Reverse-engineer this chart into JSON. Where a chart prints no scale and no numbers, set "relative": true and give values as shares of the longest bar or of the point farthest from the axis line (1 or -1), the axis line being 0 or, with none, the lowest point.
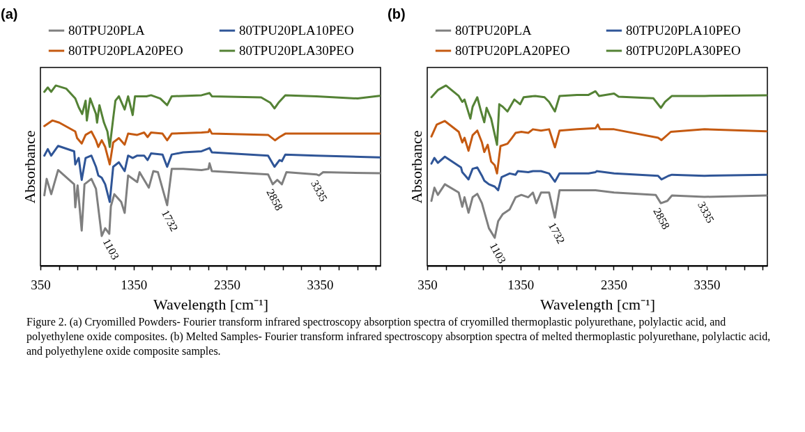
{
  "chart_data": [
    {
      "type": "line",
      "title": "(a)",
      "xlabel": "Wavelength [cm⁻¹]",
      "ylabel": "Absorbance",
      "relative": true,
      "legend": "top",
      "tick_labels": "x",
      "xlim": [
        350,
        4000
      ],
      "xticks": [
        350,
        {
          "value": 550,
          "label": null
        },
        {
          "value": 750,
          "label": null
        },
        {
          "value": 950,
          "label": null
        },
        {
          "value": 1150,
          "label": null
        },
        1350,
        {
          "value": 1550,
          "label": null
        },
        {
          "value": 1750,
          "label": null
        },
        {
          "value": 1950,
          "label": null
        },
        {
          "value": 2150,
          "label": null
        },
        2350,
        {
          "value": 2550,
          "label": null
        },
        {
          "value": 2750,
          "label": null
        },
        {
          "value": 2950,
          "label": null
        },
        {
          "value": 3150,
          "label": null
        },
        3350,
        {
          "value": 3550,
          "label": null
        },
        {
          "value": 3750,
          "label": null
        },
        {
          "value": 3950,
          "label": null
        }
      ],
      "annotations": [
        {
          "text": "1103",
          "x": 1103,
          "y": 0.177
        },
        {
          "text": "1732",
          "x": 1732,
          "y": 0.336
        },
        {
          "text": "2858",
          "x": 2858,
          "y": 0.452
        },
        {
          "text": "3335",
          "x": 3335,
          "y": 0.501
        },
        "Figure 2. (a) Cryomilled Powders- Fourier transform infrared spectroscopy absorption spectra of cryomilled thermoplastic polyurethane, polylactic acid, and polyethylene oxide composites. (b) Melted Samples- Fourier transform infrared spectroscopy absorption spectra of melted thermoplastic polyurethane, polylactic acid, and polyethylene oxide composite samples."
      ],
      "series": [
        {
          "name": "80TPU20PLA",
          "color": "#7f7f7f",
          "x": [
            392,
            417,
            466,
            540,
            712,
            724,
            749,
            793,
            823,
            897,
            946,
            1008,
            1045,
            1089,
            1106,
            1143,
            1217,
            1254,
            1291,
            1389,
            1414,
            1513,
            1562,
            1611,
            1710,
            1759,
            1882,
            2079,
            2153,
            2165,
            2190,
            2793,
            2843,
            2892,
            2941,
            2990,
            3311,
            3340,
            3384,
            3990
          ],
          "values": [
            0.391,
            0.482,
            0.397,
            0.531,
            0.452,
            0.324,
            0.446,
            0.195,
            0.452,
            0.482,
            0.427,
            0.165,
            0.208,
            0.177,
            0.33,
            0.397,
            0.354,
            0.293,
            0.501,
            0.464,
            0.519,
            0.433,
            0.525,
            0.519,
            0.336,
            0.537,
            0.537,
            0.531,
            0.537,
            0.568,
            0.525,
            0.507,
            0.452,
            0.476,
            0.452,
            0.519,
            0.507,
            0.501,
            0.519,
            0.513
          ]
        },
        {
          "name": "80TPU20PLA10PEO",
          "color": "#2f5597",
          "x": [
            392,
            429,
            466,
            540,
            712,
            724,
            761,
            793,
            835,
            897,
            946,
            971,
            1008,
            1045,
            1094,
            1131,
            1192,
            1254,
            1291,
            1340,
            1389,
            1463,
            1500,
            1537,
            1660,
            1710,
            1759,
            1882,
            2079,
            2165,
            2190,
            2793,
            2862,
            2916,
            2941,
            2978,
            3311,
            3990
          ],
          "values": [
            0.611,
            0.647,
            0.611,
            0.665,
            0.635,
            0.562,
            0.598,
            0.476,
            0.598,
            0.611,
            0.549,
            0.501,
            0.488,
            0.452,
            0.354,
            0.549,
            0.574,
            0.525,
            0.611,
            0.598,
            0.611,
            0.611,
            0.586,
            0.623,
            0.617,
            0.549,
            0.617,
            0.629,
            0.635,
            0.653,
            0.629,
            0.611,
            0.549,
            0.586,
            0.58,
            0.617,
            0.611,
            0.601
          ]
        },
        {
          "name": "80TPU20PLA20PEO",
          "color": "#c55a11",
          "x": [
            392,
            478,
            552,
            724,
            744,
            793,
            835,
            897,
            946,
            971,
            1008,
            1045,
            1094,
            1131,
            1192,
            1254,
            1291,
            1389,
            1463,
            1500,
            1537,
            1660,
            1710,
            1759,
            2079,
            2153,
            2165,
            2190,
            2793,
            2867,
            2916,
            2978,
            3990
          ],
          "values": [
            0.775,
            0.806,
            0.794,
            0.745,
            0.708,
            0.678,
            0.726,
            0.745,
            0.696,
            0.659,
            0.696,
            0.659,
            0.562,
            0.684,
            0.708,
            0.672,
            0.733,
            0.726,
            0.739,
            0.714,
            0.739,
            0.733,
            0.696,
            0.733,
            0.739,
            0.742,
            0.757,
            0.733,
            0.726,
            0.696,
            0.714,
            0.733,
            0.733
          ]
        },
        {
          "name": "80TPU20PLA30PEO",
          "color": "#548235",
          "x": [
            392,
            429,
            466,
            515,
            626,
            724,
            761,
            798,
            835,
            848,
            884,
            946,
            958,
            983,
            1032,
            1069,
            1094,
            1131,
            1155,
            1192,
            1254,
            1291,
            1340,
            1365,
            1488,
            1537,
            1636,
            1710,
            1759,
            2079,
            2165,
            2190,
            2719,
            2818,
            2862,
            2904,
            2978,
            3311,
            3754,
            3990
          ],
          "values": [
            0.965,
            0.989,
            0.965,
            1,
            0.983,
            0.928,
            0.879,
            0.842,
            0.916,
            0.806,
            0.928,
            0.842,
            0.794,
            0.891,
            0.794,
            0.745,
            0.659,
            0.818,
            0.916,
            0.94,
            0.867,
            0.94,
            0.836,
            0.94,
            0.94,
            0.946,
            0.928,
            0.891,
            0.94,
            0.946,
            0.958,
            0.94,
            0.934,
            0.904,
            0.873,
            0.904,
            0.946,
            0.94,
            0.928,
            0.943
          ]
        }
      ]
    },
    {
      "type": "line",
      "title": "(b)",
      "xlabel": "Wavelength [cm⁻¹]",
      "ylabel": "Absorbance",
      "relative": true,
      "legend": "top",
      "tick_labels": "x",
      "xlim": [
        350,
        4000
      ],
      "xticks": [
        350,
        {
          "value": 550,
          "label": null
        },
        {
          "value": 750,
          "label": null
        },
        {
          "value": 950,
          "label": null
        },
        {
          "value": 1150,
          "label": null
        },
        1350,
        {
          "value": 1550,
          "label": null
        },
        {
          "value": 1750,
          "label": null
        },
        {
          "value": 1950,
          "label": null
        },
        {
          "value": 2150,
          "label": null
        },
        2350,
        {
          "value": 2550,
          "label": null
        },
        {
          "value": 2750,
          "label": null
        },
        {
          "value": 2950,
          "label": null
        },
        {
          "value": 3150,
          "label": null
        },
        3350,
        {
          "value": 3550,
          "label": null
        },
        {
          "value": 3750,
          "label": null
        },
        {
          "value": 3950,
          "label": null
        }
      ],
      "annotations": [
        {
          "text": "1103",
          "x": 1103,
          "y": 0.155
        },
        {
          "text": "1732",
          "x": 1732,
          "y": 0.267
        },
        {
          "text": "2858",
          "x": 2858,
          "y": 0.347
        },
        {
          "text": "3335",
          "x": 3335,
          "y": 0.382
        }
      ],
      "series": [
        {
          "name": "80TPU20PLA",
          "color": "#7f7f7f",
          "x": [
            395,
            427,
            464,
            539,
            688,
            726,
            750,
            793,
            837,
            887,
            937,
            962,
            1012,
            1074,
            1111,
            1161,
            1235,
            1298,
            1360,
            1434,
            1484,
            1521,
            1571,
            1658,
            1720,
            1770,
            1957,
            2156,
            2355,
            2802,
            2857,
            2927,
            2976,
            3325,
            3990
          ],
          "values": [
            0.36,
            0.433,
            0.393,
            0.452,
            0.406,
            0.327,
            0.38,
            0.294,
            0.38,
            0.399,
            0.347,
            0.3,
            0.208,
            0.155,
            0.247,
            0.287,
            0.313,
            0.38,
            0.393,
            0.38,
            0.406,
            0.347,
            0.406,
            0.406,
            0.267,
            0.419,
            0.419,
            0.419,
            0.406,
            0.393,
            0.347,
            0.36,
            0.39,
            0.382,
            0.39
          ]
        },
        {
          "name": "80TPU20PLA10PEO",
          "color": "#2f5597",
          "x": [
            395,
            427,
            464,
            539,
            713,
            726,
            793,
            837,
            887,
            937,
            962,
            1012,
            1074,
            1111,
            1148,
            1235,
            1298,
            1322,
            1434,
            1484,
            1571,
            1658,
            1720,
            1770,
            2081,
            2156,
            2168,
            2355,
            2827,
            2864,
            2939,
            2976,
            3325,
            3990
          ],
          "values": [
            0.567,
            0.598,
            0.571,
            0.605,
            0.545,
            0.519,
            0.479,
            0.538,
            0.545,
            0.499,
            0.472,
            0.452,
            0.439,
            0.419,
            0.492,
            0.512,
            0.505,
            0.525,
            0.519,
            0.525,
            0.525,
            0.512,
            0.466,
            0.512,
            0.512,
            0.519,
            0.525,
            0.512,
            0.499,
            0.479,
            0.499,
            0.505,
            0.499,
            0.505
          ]
        },
        {
          "name": "80TPU20PLA20PEO",
          "color": "#c55a11",
          "x": [
            395,
            452,
            539,
            688,
            726,
            750,
            793,
            837,
            887,
            937,
            962,
            999,
            1036,
            1074,
            1099,
            1136,
            1211,
            1260,
            1298,
            1360,
            1434,
            1484,
            1571,
            1658,
            1720,
            1770,
            1957,
            2156,
            2180,
            2205,
            2355,
            2827,
            2864,
            2964,
            3325,
            3990
          ],
          "values": [
            0.717,
            0.783,
            0.803,
            0.743,
            0.684,
            0.71,
            0.638,
            0.724,
            0.75,
            0.684,
            0.631,
            0.671,
            0.578,
            0.558,
            0.512,
            0.664,
            0.677,
            0.71,
            0.737,
            0.743,
            0.737,
            0.757,
            0.75,
            0.757,
            0.657,
            0.75,
            0.757,
            0.763,
            0.783,
            0.757,
            0.757,
            0.71,
            0.697,
            0.743,
            0.757,
            0.746
          ]
        },
        {
          "name": "80TPU20PLA30PEO",
          "color": "#548235",
          "x": [
            395,
            464,
            551,
            688,
            726,
            750,
            813,
            837,
            887,
            924,
            962,
            987,
            1036,
            1099,
            1123,
            1161,
            1211,
            1285,
            1347,
            1385,
            1509,
            1608,
            1658,
            1720,
            1770,
            1957,
            2081,
            2155,
            2193,
            2355,
            2404,
            2777,
            2857,
            2902,
            2976,
            3325,
            3990
          ],
          "values": [
            0.935,
            0.975,
            1,
            0.942,
            0.909,
            0.922,
            0.816,
            0.882,
            0.935,
            0.862,
            0.796,
            0.876,
            0.816,
            0.671,
            0.896,
            0.882,
            0.856,
            0.922,
            0.896,
            0.935,
            0.942,
            0.935,
            0.909,
            0.856,
            0.942,
            0.948,
            0.948,
            0.968,
            0.942,
            0.955,
            0.938,
            0.929,
            0.876,
            0.909,
            0.942,
            0.942,
            0.946
          ]
        }
      ]
    }
  ]
}
